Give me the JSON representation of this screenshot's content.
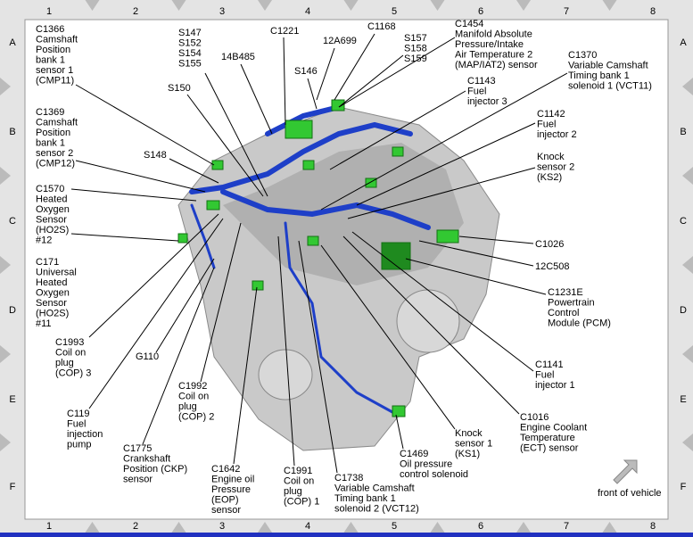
{
  "grid": {
    "columns": [
      "1",
      "2",
      "3",
      "4",
      "5",
      "6",
      "7",
      "8"
    ],
    "rows": [
      "A",
      "B",
      "C",
      "D",
      "E",
      "F"
    ]
  },
  "callouts": [
    {
      "lines": [
        "C1366",
        "Camshaft",
        "Position",
        "bank 1",
        "sensor 1",
        "(CMP11)"
      ]
    },
    {
      "lines": [
        "C1369",
        "Camshaft",
        "Position",
        "bank 1",
        "sensor 2",
        "(CMP12)"
      ]
    },
    {
      "lines": [
        "C1570",
        "Heated",
        "Oxygen",
        "Sensor",
        "(HO2S)",
        "#12"
      ]
    },
    {
      "lines": [
        "C171",
        "Universal",
        "Heated",
        "Oxygen",
        "Sensor",
        "(HO2S)",
        "#11"
      ]
    },
    {
      "lines": [
        "C1993",
        "Coil on",
        "plug",
        "(COP) 3"
      ]
    },
    {
      "lines": [
        "C119",
        "Fuel",
        "injection",
        "pump"
      ]
    },
    {
      "lines": [
        "C1775",
        "Crankshaft",
        "Position (CKP)",
        "sensor"
      ]
    },
    {
      "lines": [
        "G110"
      ]
    },
    {
      "lines": [
        "C1992",
        "Coil on",
        "plug",
        "(COP) 2"
      ]
    },
    {
      "lines": [
        "C1642",
        "Engine oil",
        "Pressure",
        "(EOP)",
        "sensor"
      ]
    },
    {
      "lines": [
        "C1991",
        "Coil on",
        "plug",
        "(COP) 1"
      ]
    },
    {
      "lines": [
        "C1738",
        "Variable Camshaft",
        "Timing bank 1",
        "solenoid 2 (VCT12)"
      ]
    },
    {
      "lines": [
        "C1469",
        "Oil pressure",
        "control solenoid"
      ]
    },
    {
      "lines": [
        "Knock",
        "sensor 1",
        "(KS1)"
      ]
    },
    {
      "lines": [
        "C1016",
        "Engine Coolant",
        "Temperature",
        "(ECT) sensor"
      ]
    },
    {
      "lines": [
        "C1141",
        "Fuel",
        "injector 1"
      ]
    },
    {
      "lines": [
        "C1231E",
        "Powertrain",
        "Control",
        "Module (PCM)"
      ]
    },
    {
      "lines": [
        "12C508"
      ]
    },
    {
      "lines": [
        "C1026"
      ]
    },
    {
      "lines": [
        "Knock",
        "sensor 2",
        "(KS2)"
      ]
    },
    {
      "lines": [
        "C1142",
        "Fuel",
        "injector 2"
      ]
    },
    {
      "lines": [
        "C1370",
        "Variable Camshaft",
        "Timing bank 1",
        "solenoid 1 (VCT11)"
      ]
    },
    {
      "lines": [
        "C1143",
        "Fuel",
        "injector 3"
      ]
    },
    {
      "lines": [
        "C1454",
        "Manifold Absolute",
        "Pressure/Intake",
        "Air Temperature 2",
        "(MAP/IAT2) sensor"
      ]
    },
    {
      "lines": [
        "S157",
        "S158",
        "S159"
      ]
    },
    {
      "lines": [
        "C1168"
      ]
    },
    {
      "lines": [
        "12A699"
      ]
    },
    {
      "lines": [
        "S146"
      ]
    },
    {
      "lines": [
        "C1221"
      ]
    },
    {
      "lines": [
        "S147",
        "S152",
        "S154",
        "S155"
      ]
    },
    {
      "lines": [
        "14B485"
      ]
    },
    {
      "lines": [
        "S150"
      ]
    },
    {
      "lines": [
        "S148"
      ]
    }
  ],
  "front_label": "front of vehicle"
}
